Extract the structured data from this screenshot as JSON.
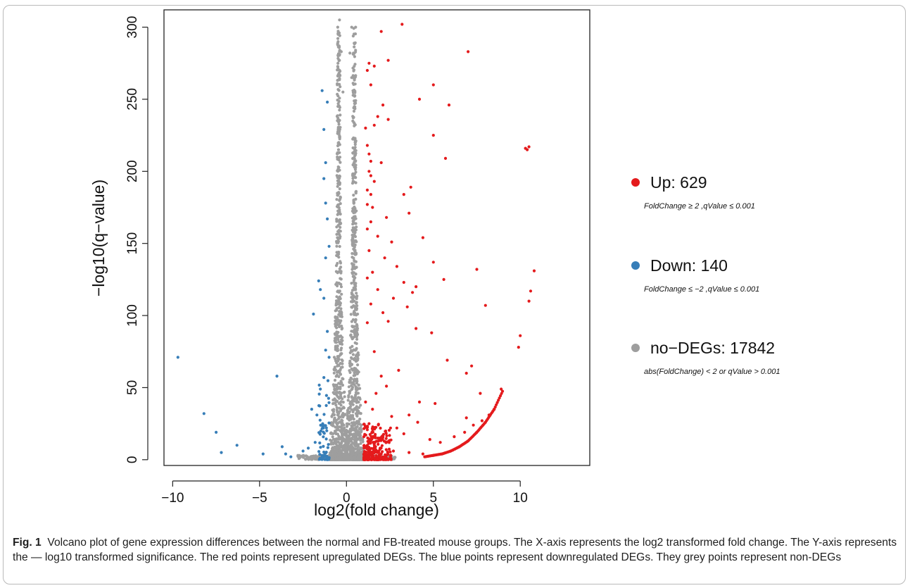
{
  "chart_data": {
    "type": "scatter",
    "title": "",
    "xlabel": "log2(fold change)",
    "ylabel": "−log10(q−value)",
    "xlim": [
      -10.5,
      14
    ],
    "ylim": [
      -4,
      312
    ],
    "xticks": [
      -10,
      -5,
      0,
      5,
      10
    ],
    "xtick_labels": [
      "−10",
      "−5",
      "0",
      "5",
      "10"
    ],
    "yticks": [
      0,
      50,
      100,
      150,
      200,
      250,
      300
    ],
    "ytick_labels": [
      "0",
      "50",
      "100",
      "150",
      "200",
      "250",
      "300"
    ],
    "grid": false,
    "legend_position": "right",
    "series": [
      {
        "name": "Up: 629",
        "criteria": "FoldChange ≥ 2 ,qValue ≤ 0.001",
        "color": "#e41a1c",
        "points": [
          [
            3.2,
            302
          ],
          [
            2.0,
            297
          ],
          [
            7.0,
            283
          ],
          [
            2.4,
            277
          ],
          [
            1.3,
            275
          ],
          [
            1.6,
            273
          ],
          [
            1.2,
            270
          ],
          [
            5.0,
            260
          ],
          [
            1.4,
            260
          ],
          [
            4.2,
            250
          ],
          [
            2.1,
            246
          ],
          [
            5.9,
            246
          ],
          [
            1.8,
            238
          ],
          [
            2.4,
            236
          ],
          [
            1.6,
            232
          ],
          [
            1.1,
            230
          ],
          [
            5.0,
            225
          ],
          [
            1.2,
            218
          ],
          [
            10.3,
            216
          ],
          [
            10.5,
            217
          ],
          [
            10.4,
            215
          ],
          [
            1.3,
            212
          ],
          [
            5.7,
            209
          ],
          [
            1.4,
            207
          ],
          [
            2.0,
            206
          ],
          [
            1.3,
            200
          ],
          [
            1.4,
            197
          ],
          [
            1.6,
            193
          ],
          [
            3.7,
            189
          ],
          [
            1.2,
            187
          ],
          [
            1.4,
            184
          ],
          [
            3.3,
            184
          ],
          [
            1.2,
            177
          ],
          [
            1.5,
            175
          ],
          [
            3.6,
            171
          ],
          [
            2.3,
            168
          ],
          [
            1.4,
            165
          ],
          [
            1.2,
            160
          ],
          [
            4.4,
            154
          ],
          [
            1.8,
            155
          ],
          [
            2.6,
            151
          ],
          [
            1.3,
            145
          ],
          [
            2.2,
            140
          ],
          [
            5.0,
            137
          ],
          [
            10.8,
            131
          ],
          [
            7.5,
            132
          ],
          [
            2.9,
            134
          ],
          [
            1.5,
            130
          ],
          [
            1.2,
            126
          ],
          [
            5.6,
            125
          ],
          [
            3.3,
            123
          ],
          [
            10.6,
            117
          ],
          [
            1.8,
            118
          ],
          [
            3.8,
            116
          ],
          [
            4.0,
            120
          ],
          [
            10.5,
            110
          ],
          [
            2.7,
            112
          ],
          [
            8.0,
            107
          ],
          [
            1.4,
            108
          ],
          [
            3.5,
            106
          ],
          [
            2.1,
            102
          ],
          [
            4.9,
            88
          ],
          [
            10.0,
            86
          ],
          [
            9.9,
            78
          ],
          [
            1.2,
            95
          ],
          [
            2.4,
            96
          ],
          [
            4.0,
            91
          ],
          [
            7.2,
            65
          ],
          [
            6.9,
            60
          ],
          [
            5.8,
            69
          ],
          [
            1.6,
            75
          ],
          [
            3.0,
            62
          ],
          [
            2.0,
            58
          ],
          [
            8.9,
            49
          ],
          [
            7.7,
            46
          ],
          [
            4.2,
            40
          ],
          [
            5.1,
            39
          ],
          [
            2.3,
            51
          ],
          [
            1.7,
            46
          ],
          [
            3.6,
            31
          ],
          [
            4.1,
            26
          ],
          [
            6.9,
            29
          ],
          [
            8.5,
            35
          ],
          [
            8.2,
            31
          ],
          [
            7.8,
            27
          ],
          [
            7.3,
            24
          ],
          [
            6.8,
            19
          ],
          [
            6.2,
            16
          ],
          [
            5.4,
            12
          ],
          [
            4.8,
            14
          ],
          [
            1.5,
            35
          ],
          [
            2.6,
            30
          ],
          [
            1.1,
            40
          ],
          [
            1.3,
            25
          ],
          [
            2.9,
            22
          ],
          [
            3.3,
            18
          ],
          [
            1.8,
            15
          ],
          [
            2.3,
            12
          ],
          [
            1.2,
            10
          ],
          [
            1.6,
            8
          ],
          [
            2.7,
            6
          ],
          [
            3.6,
            5
          ],
          [
            4.4,
            4
          ],
          [
            5.0,
            3
          ],
          [
            1.1,
            4
          ],
          [
            1.4,
            3
          ],
          [
            2.0,
            4
          ],
          [
            1.2,
            2
          ]
        ],
        "curve": [
          [
            4.5,
            2
          ],
          [
            5.0,
            3
          ],
          [
            5.5,
            4
          ],
          [
            6.0,
            6
          ],
          [
            6.5,
            9
          ],
          [
            7.0,
            13
          ],
          [
            7.5,
            19
          ],
          [
            8.0,
            26
          ],
          [
            8.5,
            35
          ],
          [
            9.0,
            48
          ]
        ],
        "cluster": {
          "x": [
            1.0,
            2.6
          ],
          "y": [
            0,
            25
          ]
        }
      },
      {
        "name": "Down: 140",
        "criteria": "FoldChange ≤ −2 ,qValue ≤ 0.001",
        "color": "#377eb8",
        "points": [
          [
            -9.7,
            71
          ],
          [
            -8.2,
            32
          ],
          [
            -7.5,
            19
          ],
          [
            -7.2,
            5
          ],
          [
            -6.3,
            10
          ],
          [
            -4.8,
            4
          ],
          [
            -4.0,
            58
          ],
          [
            -3.7,
            9
          ],
          [
            -3.5,
            4
          ],
          [
            -3.2,
            2
          ],
          [
            -2.0,
            35
          ],
          [
            -1.9,
            101
          ],
          [
            -1.6,
            124
          ],
          [
            -1.5,
            118
          ],
          [
            -1.4,
            256
          ],
          [
            -1.3,
            229
          ],
          [
            -1.2,
            206
          ],
          [
            -1.1,
            248
          ],
          [
            -1.3,
            195
          ],
          [
            -1.2,
            178
          ],
          [
            -1.1,
            167
          ],
          [
            -1.0,
            148
          ],
          [
            -1.2,
            140
          ],
          [
            -1.3,
            112
          ],
          [
            -1.1,
            89
          ],
          [
            -1.2,
            76
          ],
          [
            -1.0,
            71
          ],
          [
            -1.3,
            57
          ],
          [
            -1.5,
            49
          ],
          [
            -1.7,
            31
          ],
          [
            -1.8,
            12
          ],
          [
            -2.2,
            8
          ],
          [
            -2.5,
            6
          ]
        ],
        "cluster": {
          "x": [
            -1.6,
            -1.0
          ],
          "y": [
            0,
            55
          ]
        }
      },
      {
        "name": "no−DEGs: 17842",
        "criteria": "abs(FoldChange) < 2  or qValue > 0.001",
        "color": "#9e9e9e",
        "points": [
          [
            -0.4,
            305
          ],
          [
            -0.5,
            300
          ],
          [
            0.3,
            300
          ],
          [
            -0.3,
            283
          ],
          [
            0.2,
            282
          ],
          [
            0.4,
            282
          ],
          [
            -0.4,
            270
          ],
          [
            0.3,
            265
          ],
          [
            -0.2,
            255
          ]
        ],
        "cluster": {
          "x": [
            -1.0,
            1.0
          ],
          "y": [
            0,
            300
          ]
        }
      }
    ]
  },
  "caption": {
    "label": "Fig. 1",
    "text": "Volcano plot of gene expression differences between the normal and FB-treated mouse groups. The X-axis represents the log2 transformed fold change. The Y-axis represents the — log10 transformed significance. The red points represent upregulated DEGs. The blue points represent downregulated DEGs. They grey points represent non-DEGs"
  }
}
